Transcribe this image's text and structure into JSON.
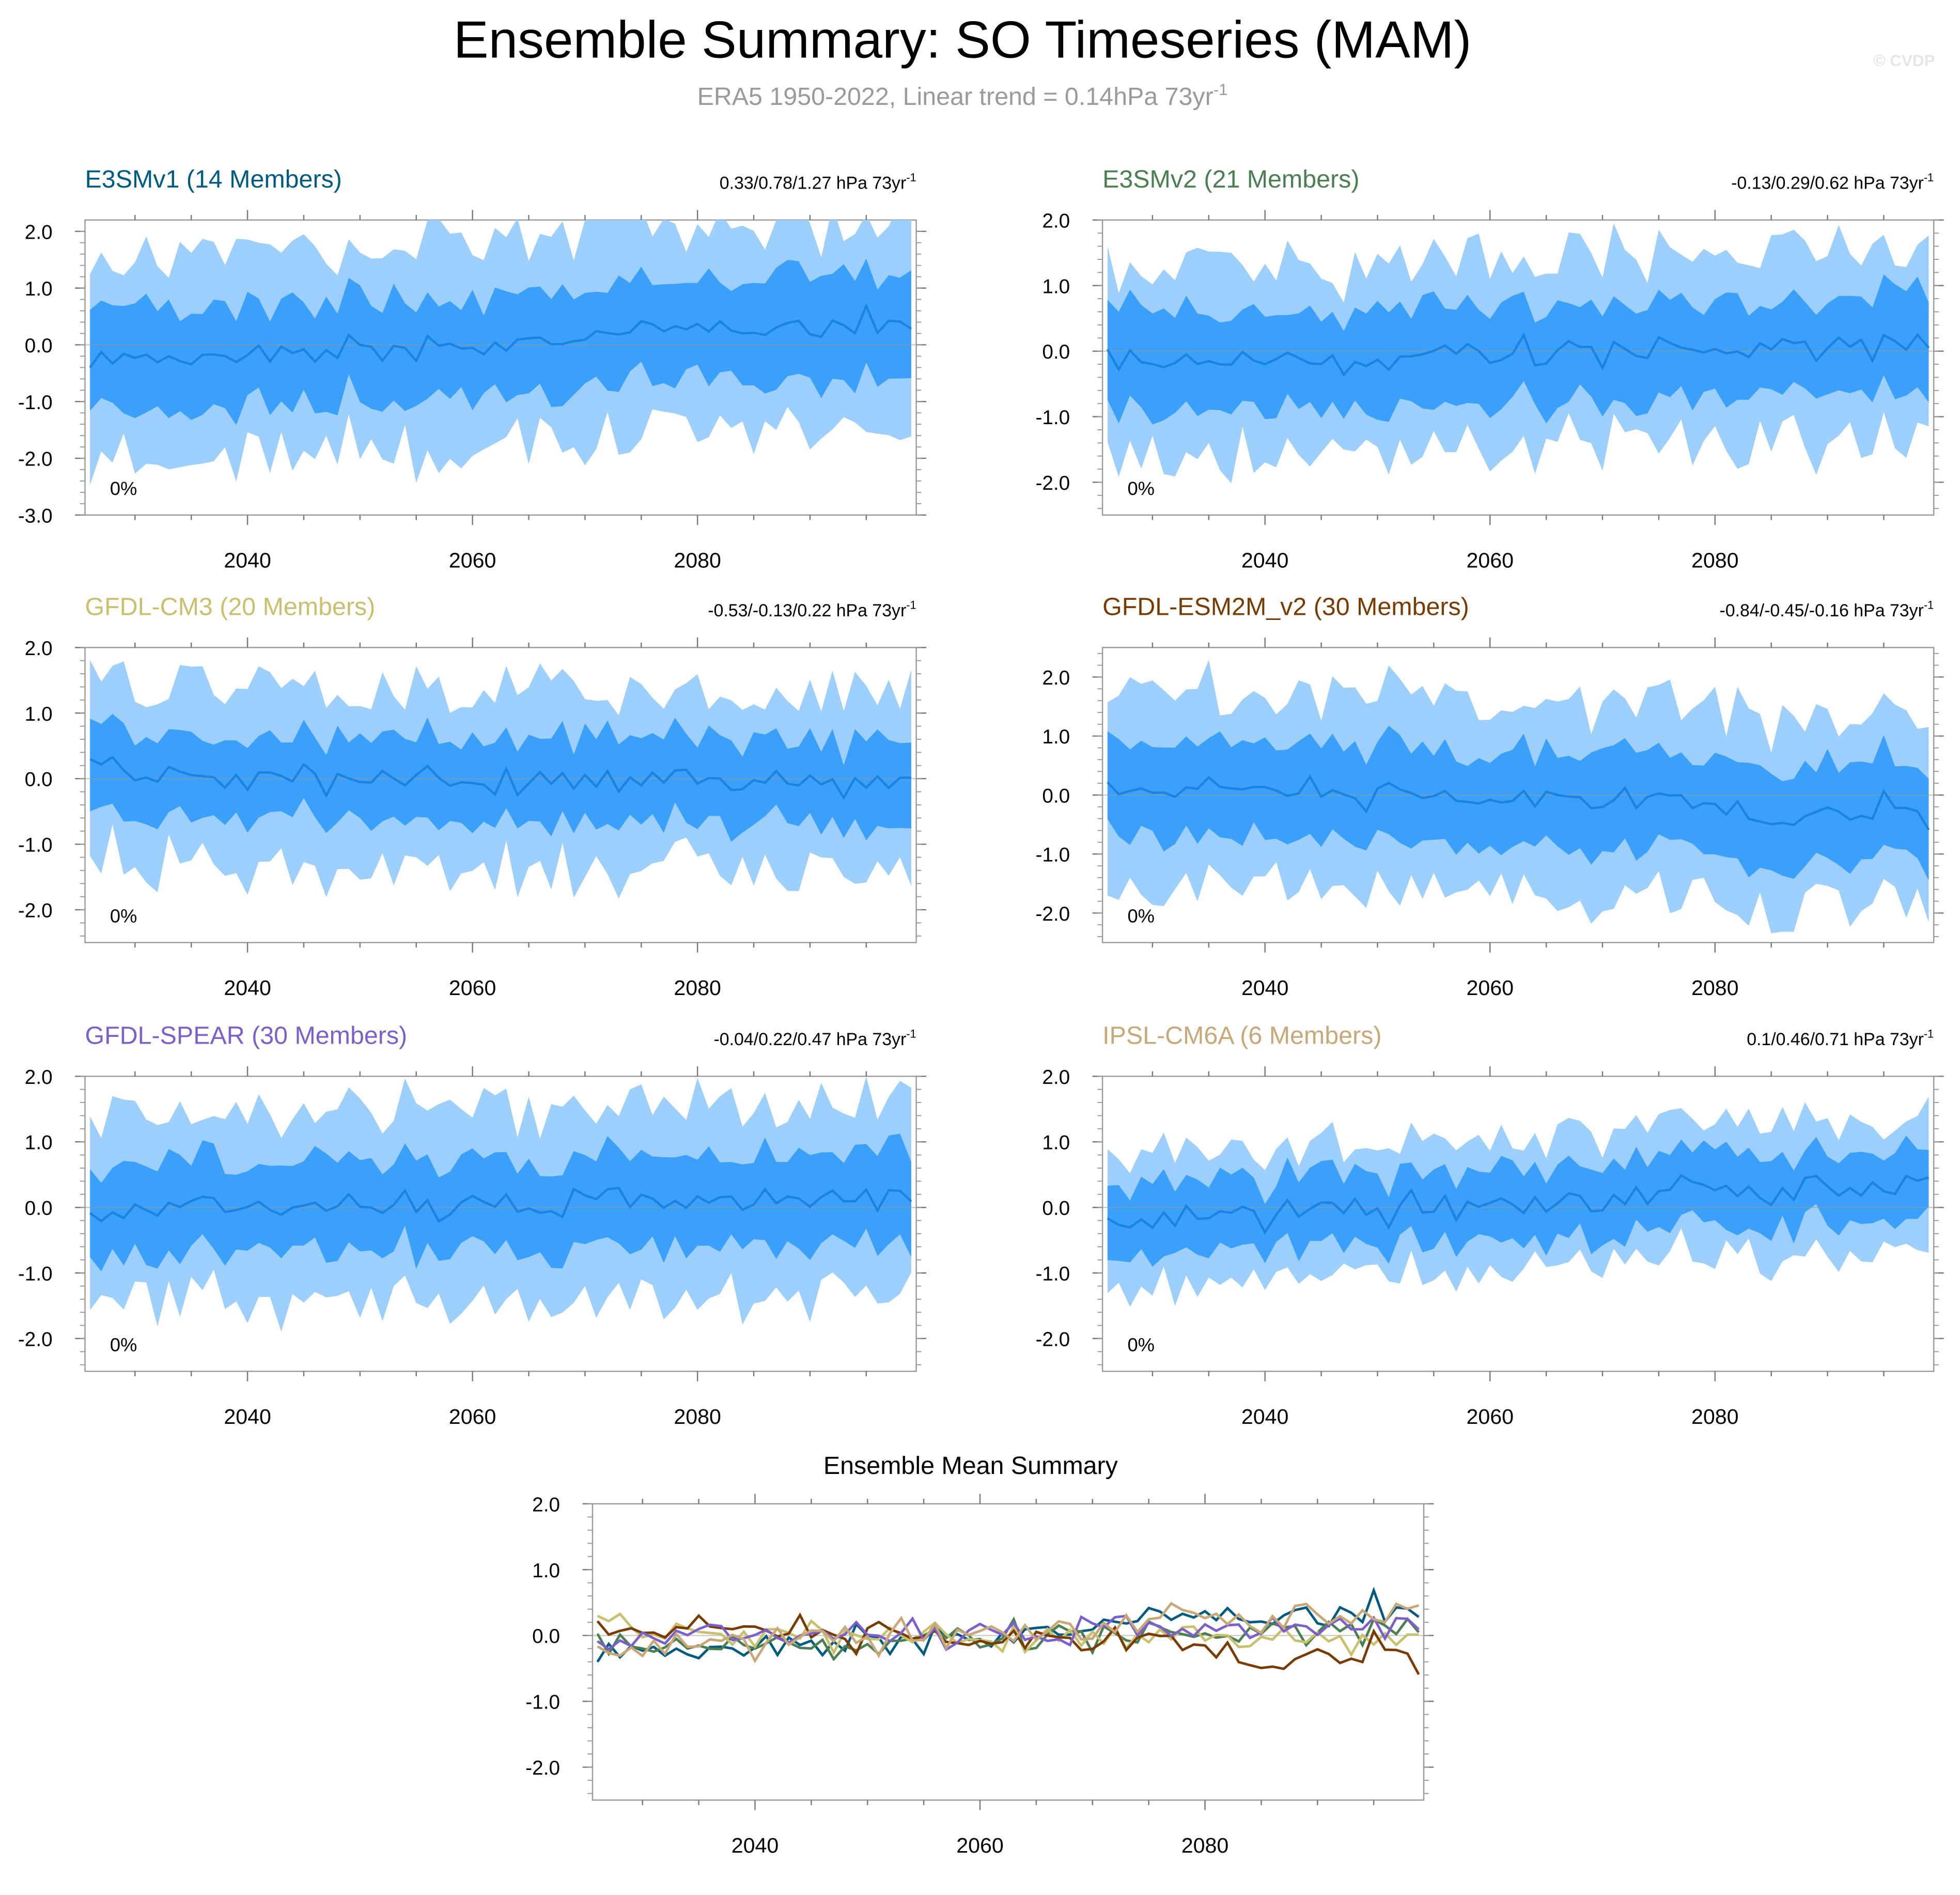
{
  "header": {
    "title": "Ensemble Summary: SO Timeseries (MAM)",
    "subtitle": "ERA5 1950-2022, Linear trend = 0.14hPa 73yr",
    "subtitle_sup": "-1",
    "watermark": "© CVDP"
  },
  "colors": {
    "band_outer": "#9dcffc",
    "band_inner": "#3aa0fa",
    "mean_line": "#1a82e0",
    "zero_line": "#999999",
    "E3SMv1": "#005b82",
    "E3SMv2": "#4b7f52",
    "GFDL-CM3": "#c9c06e",
    "GFDL-ESM2M_v2": "#7a3b00",
    "GFDL-SPEAR": "#7b5fcc",
    "IPSL-CM6A": "#c8a878"
  },
  "chart_data": [
    {
      "type": "area",
      "id": "p1",
      "title": "E3SMv1 (14 Members)",
      "title_color": "#005b82",
      "trend": "0.33/0.78/1.27 hPa 73yr",
      "trend_sup": "-1",
      "pct": "0%",
      "x_start": 2026,
      "x_end": 2099,
      "xticks": [
        "2040",
        "2060",
        "2080"
      ],
      "yticks": [
        "2.0",
        "1.0",
        "0.0",
        "-1.0",
        "-2.0",
        "-3.0"
      ],
      "ylim": [
        -3.0,
        2.2
      ],
      "seed": 11,
      "mean_offset": -0.3,
      "mean_trend": 0.7,
      "inner_half": 0.9,
      "outer_half": 1.8,
      "members": 14
    },
    {
      "type": "area",
      "id": "p2",
      "title": "E3SMv2 (21 Members)",
      "title_color": "#4b7f52",
      "trend": "-0.13/0.29/0.62 hPa 73yr",
      "trend_sup": "-1",
      "pct": "0%",
      "x_start": 2026,
      "x_end": 2099,
      "xticks": [
        "2040",
        "2060",
        "2080"
      ],
      "yticks": [
        "2.0",
        "1.0",
        "0.0",
        "-1.0",
        "-2.0"
      ],
      "ylim": [
        -2.5,
        2.0
      ],
      "seed": 23,
      "mean_offset": -0.2,
      "mean_trend": 0.35,
      "inner_half": 0.75,
      "outer_half": 1.45,
      "members": 21
    },
    {
      "type": "area",
      "id": "p3",
      "title": "GFDL-CM3 (20 Members)",
      "title_color": "#c9c06e",
      "trend": "-0.53/-0.13/0.22 hPa 73yr",
      "trend_sup": "-1",
      "pct": "0%",
      "x_start": 2026,
      "x_end": 2099,
      "xticks": [
        "2040",
        "2060",
        "2080"
      ],
      "yticks": [
        "2.0",
        "1.0",
        "0.0",
        "-1.0",
        "-2.0"
      ],
      "ylim": [
        -2.5,
        2.0
      ],
      "seed": 37,
      "mean_offset": 0.05,
      "mean_trend": -0.1,
      "inner_half": 0.65,
      "outer_half": 1.35,
      "members": 20
    },
    {
      "type": "area",
      "id": "p4",
      "title": "GFDL-ESM2M_v2 (30 Members)",
      "title_color": "#7a3b00",
      "trend": "-0.84/-0.45/-0.16 hPa 73yr",
      "trend_sup": "-1",
      "pct": "0%",
      "x_start": 2026,
      "x_end": 2099,
      "xticks": [
        "2040",
        "2060",
        "2080"
      ],
      "yticks": [
        "2.0",
        "1.0",
        "0.0",
        "-1.0",
        "-2.0"
      ],
      "ylim": [
        -2.5,
        2.5
      ],
      "seed": 41,
      "mean_offset": 0.15,
      "mean_trend": -0.45,
      "inner_half": 0.8,
      "outer_half": 1.6,
      "members": 30
    },
    {
      "type": "area",
      "id": "p5",
      "title": "GFDL-SPEAR (30 Members)",
      "title_color": "#7b5fcc",
      "trend": "-0.04/0.22/0.47 hPa 73yr",
      "trend_sup": "-1",
      "pct": "0%",
      "x_start": 2026,
      "x_end": 2099,
      "xticks": [
        "2040",
        "2060",
        "2080"
      ],
      "yticks": [
        "2.0",
        "1.0",
        "0.0",
        "-1.0",
        "-2.0"
      ],
      "ylim": [
        -2.5,
        2.0
      ],
      "seed": 53,
      "mean_offset": -0.05,
      "mean_trend": 0.2,
      "inner_half": 0.7,
      "outer_half": 1.45,
      "members": 30
    },
    {
      "type": "area",
      "id": "p6",
      "title": "IPSL-CM6A (6 Members)",
      "title_color": "#c8a878",
      "trend": "0.1/0.46/0.71 hPa 73yr",
      "trend_sup": "-1",
      "pct": "0%",
      "x_start": 2026,
      "x_end": 2099,
      "xticks": [
        "2040",
        "2060",
        "2080"
      ],
      "yticks": [
        "2.0",
        "1.0",
        "0.0",
        "-1.0",
        "-2.0"
      ],
      "ylim": [
        -2.5,
        2.0
      ],
      "seed": 67,
      "mean_offset": -0.15,
      "mean_trend": 0.5,
      "inner_half": 0.55,
      "outer_half": 1.0,
      "members": 6
    },
    {
      "type": "line",
      "id": "p7",
      "title": "Ensemble Mean Summary",
      "x_start": 2026,
      "x_end": 2099,
      "xticks": [
        "2040",
        "2060",
        "2080"
      ],
      "yticks": [
        "2.0",
        "1.0",
        "0.0",
        "-1.0",
        "-2.0"
      ],
      "ylim": [
        -2.5,
        2.0
      ],
      "series": [
        {
          "name": "E3SMv1",
          "seed": 11,
          "mean_offset": -0.3,
          "mean_trend": 0.7
        },
        {
          "name": "E3SMv2",
          "seed": 23,
          "mean_offset": -0.2,
          "mean_trend": 0.35
        },
        {
          "name": "GFDL-CM3",
          "seed": 37,
          "mean_offset": 0.05,
          "mean_trend": -0.1
        },
        {
          "name": "GFDL-ESM2M_v2",
          "seed": 41,
          "mean_offset": 0.15,
          "mean_trend": -0.45
        },
        {
          "name": "GFDL-SPEAR",
          "seed": 53,
          "mean_offset": -0.05,
          "mean_trend": 0.2
        },
        {
          "name": "IPSL-CM6A",
          "seed": 67,
          "mean_offset": -0.15,
          "mean_trend": 0.5
        }
      ]
    }
  ]
}
